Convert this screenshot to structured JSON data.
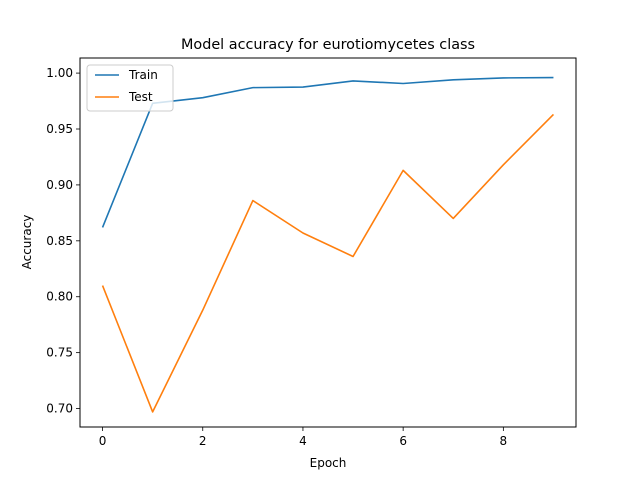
{
  "chart_data": {
    "type": "line",
    "title": "Model accuracy for eurotiomycetes class",
    "xlabel": "Epoch",
    "ylabel": "Accuracy",
    "x": [
      0,
      1,
      2,
      3,
      4,
      5,
      6,
      7,
      8,
      9
    ],
    "xlim": [
      -0.45,
      9.45
    ],
    "ylim": [
      0.6835,
      1.0135
    ],
    "xticks": [
      0,
      2,
      4,
      6,
      8
    ],
    "xtick_labels": [
      "0",
      "2",
      "4",
      "6",
      "8"
    ],
    "yticks": [
      0.7,
      0.75,
      0.8,
      0.85,
      0.9,
      0.95,
      1.0
    ],
    "ytick_labels": [
      "0.70",
      "0.75",
      "0.80",
      "0.85",
      "0.90",
      "0.95",
      "1.00"
    ],
    "grid": false,
    "legend_position": "top-left",
    "series": [
      {
        "name": "Train",
        "color": "#1f77b4",
        "values": [
          0.862,
          0.973,
          0.978,
          0.987,
          0.9875,
          0.993,
          0.9907,
          0.994,
          0.9957,
          0.996
        ]
      },
      {
        "name": "Test",
        "color": "#ff7f0e",
        "values": [
          0.81,
          0.697,
          0.788,
          0.886,
          0.857,
          0.836,
          0.913,
          0.87,
          0.918,
          0.963
        ]
      }
    ]
  }
}
